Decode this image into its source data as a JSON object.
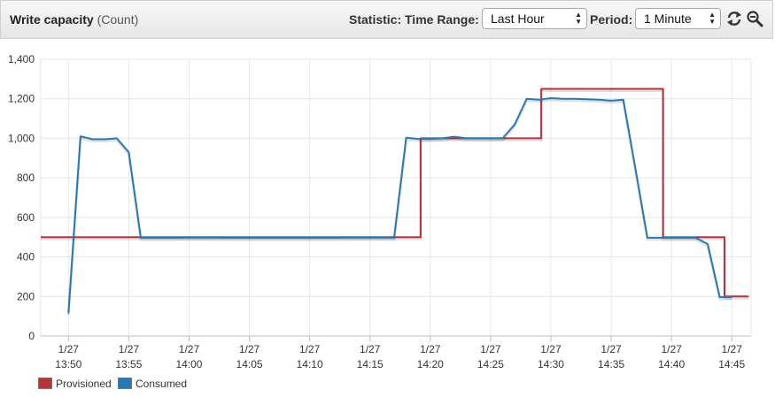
{
  "header": {
    "title": "Write capacity",
    "unit": "(Count)",
    "statistic_label": "Statistic:",
    "time_range_label": "Time Range:",
    "time_range_value": "Last Hour",
    "period_label": "Period:",
    "period_value": "1 Minute",
    "refresh_icon": "refresh-icon",
    "zoom_icon": "zoom-out-icon"
  },
  "chart_data": {
    "type": "line",
    "title": "",
    "xlabel": "",
    "ylabel": "",
    "ylim": [
      0,
      1400
    ],
    "yticks": [
      "0",
      "200",
      "400",
      "600",
      "800",
      "1,000",
      "1,200",
      "1,400"
    ],
    "ytick_values": [
      0,
      200,
      400,
      600,
      800,
      1000,
      1200,
      1400
    ],
    "xlim": [
      47.7,
      106.6
    ],
    "xticks": [
      {
        "date": "1/27",
        "time": "13:50"
      },
      {
        "date": "1/27",
        "time": "13:55"
      },
      {
        "date": "1/27",
        "time": "14:00"
      },
      {
        "date": "1/27",
        "time": "14:05"
      },
      {
        "date": "1/27",
        "time": "14:10"
      },
      {
        "date": "1/27",
        "time": "14:15"
      },
      {
        "date": "1/27",
        "time": "14:20"
      },
      {
        "date": "1/27",
        "time": "14:25"
      },
      {
        "date": "1/27",
        "time": "14:30"
      },
      {
        "date": "1/27",
        "time": "14:35"
      },
      {
        "date": "1/27",
        "time": "14:40"
      },
      {
        "date": "1/27",
        "time": "14:45"
      }
    ],
    "xtick_minutes": [
      50,
      55,
      60,
      65,
      70,
      75,
      80,
      85,
      90,
      95,
      100,
      105
    ],
    "grid": true,
    "legend_position": "bottom-left",
    "series": [
      {
        "name": "Provisioned",
        "color": "#b5343a",
        "step": true,
        "x": [
          47.7,
          79.2,
          79.2,
          89.2,
          89.2,
          99.3,
          99.3,
          104.4,
          104.4,
          106.4
        ],
        "values": [
          500,
          500,
          1000,
          1000,
          1250,
          1250,
          500,
          500,
          200,
          200
        ]
      },
      {
        "name": "Consumed",
        "color": "#2878b5",
        "step": false,
        "x": [
          50,
          51,
          52,
          53,
          54,
          55,
          56,
          57,
          58,
          59,
          60,
          61,
          62,
          63,
          64,
          65,
          66,
          67,
          68,
          69,
          70,
          71,
          72,
          73,
          74,
          75,
          76,
          77,
          78,
          79,
          80,
          81,
          82,
          83,
          84,
          85,
          86,
          87,
          88,
          89,
          90,
          91,
          92,
          93,
          94,
          95,
          96,
          97,
          98,
          99,
          100,
          101,
          102,
          103,
          104,
          105
        ],
        "values": [
          115,
          1010,
          995,
          995,
          1000,
          930,
          497,
          497,
          497,
          497,
          498,
          498,
          498,
          497,
          497,
          497,
          497,
          497,
          497,
          497,
          498,
          497,
          497,
          498,
          498,
          498,
          498,
          497,
          1003,
          997,
          997,
          1000,
          1008,
          1000,
          1000,
          1000,
          1000,
          1070,
          1200,
          1195,
          1203,
          1200,
          1200,
          1198,
          1195,
          1190,
          1195,
          850,
          497,
          497,
          497,
          497,
          497,
          465,
          197,
          197
        ]
      }
    ]
  }
}
